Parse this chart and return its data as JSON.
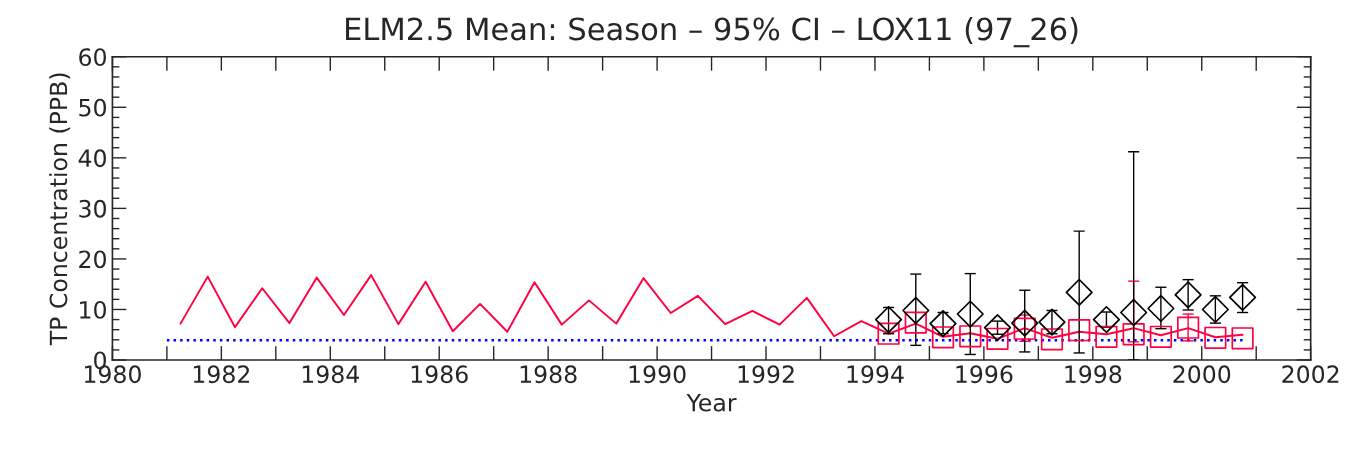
{
  "chart_data": {
    "type": "line",
    "title": "ELM2.5 Mean: Season – 95% CI – LOX11 (97_26)",
    "xlabel": "Year",
    "ylabel": "TP Concentration (PPB)",
    "xlim": [
      1980,
      2002
    ],
    "xticks": [
      1980,
      {
        "value": 1981,
        "label": null
      },
      1982,
      {
        "value": 1983,
        "label": null
      },
      1984,
      {
        "value": 1985,
        "label": null
      },
      1986,
      {
        "value": 1987,
        "label": null
      },
      1988,
      {
        "value": 1989,
        "label": null
      },
      1990,
      {
        "value": 1991,
        "label": null
      },
      1992,
      {
        "value": 1993,
        "label": null
      },
      1994,
      {
        "value": 1995,
        "label": null
      },
      1996,
      {
        "value": 1997,
        "label": null
      },
      1998,
      {
        "value": 1999,
        "label": null
      },
      2000,
      {
        "value": 2001,
        "label": null
      },
      2002
    ],
    "ylim": [
      0,
      60
    ],
    "yticks": [
      0,
      {
        "value": 2,
        "label": null
      },
      {
        "value": 4,
        "label": null
      },
      {
        "value": 6,
        "label": null
      },
      {
        "value": 8,
        "label": null
      },
      10,
      {
        "value": 12,
        "label": null
      },
      {
        "value": 14,
        "label": null
      },
      {
        "value": 16,
        "label": null
      },
      {
        "value": 18,
        "label": null
      },
      20,
      {
        "value": 22,
        "label": null
      },
      {
        "value": 24,
        "label": null
      },
      {
        "value": 26,
        "label": null
      },
      {
        "value": 28,
        "label": null
      },
      30,
      {
        "value": 32,
        "label": null
      },
      {
        "value": 34,
        "label": null
      },
      {
        "value": 36,
        "label": null
      },
      {
        "value": 38,
        "label": null
      },
      40,
      {
        "value": 42,
        "label": null
      },
      {
        "value": 44,
        "label": null
      },
      {
        "value": 46,
        "label": null
      },
      {
        "value": 48,
        "label": null
      },
      50,
      {
        "value": 52,
        "label": null
      },
      {
        "value": 54,
        "label": null
      },
      {
        "value": 56,
        "label": null
      },
      {
        "value": 58,
        "label": null
      },
      60
    ],
    "grid": false,
    "series": [
      {
        "color": "#ff0040",
        "marker": "none",
        "line_style": "solid",
        "x": [
          1981.25,
          1981.75,
          1982.25,
          1982.75,
          1983.25,
          1983.75,
          1984.25,
          1984.75,
          1985.25,
          1985.75,
          1986.25,
          1986.75,
          1987.25,
          1987.75,
          1988.25,
          1988.75,
          1989.25,
          1989.75,
          1990.25,
          1990.75,
          1991.25,
          1991.75,
          1992.25,
          1992.75,
          1993.25,
          1993.75,
          1994.25,
          1994.75,
          1995.25,
          1995.75,
          1996.25,
          1996.75,
          1997.25,
          1997.75,
          1998.25,
          1998.75,
          1999.25,
          1999.75,
          2000.25,
          2000.75
        ],
        "values": [
          7.2,
          16.5,
          6.5,
          14.2,
          7.3,
          16.3,
          8.9,
          16.8,
          7.1,
          15.5,
          5.7,
          11.1,
          5.6,
          15.4,
          7.0,
          11.8,
          7.2,
          16.2,
          9.3,
          12.7,
          7.1,
          9.7,
          7.0,
          12.3,
          4.7,
          7.7,
          5.2,
          7.2,
          4.6,
          5.3,
          4.2,
          6.3,
          4.4,
          5.6,
          5.1,
          6.3,
          4.9,
          6.3,
          4.5,
          5.0
        ]
      },
      {
        "type": "line",
        "color": "#0000ff",
        "marker": "none",
        "line_style": "dotted",
        "x": [
          1981.0,
          2000.75
        ],
        "values": [
          3.9,
          3.9
        ]
      },
      {
        "type": "scatter",
        "color": "#ff0040",
        "marker": "square",
        "x": [
          1994.25,
          1994.75,
          1995.25,
          1995.75,
          1996.25,
          1996.75,
          1997.25,
          1997.75,
          1998.25,
          1998.75,
          1999.25,
          1999.75,
          2000.25,
          2000.75
        ],
        "values": [
          5.2,
          7.4,
          4.5,
          4.7,
          4.2,
          6.2,
          4.1,
          5.9,
          4.6,
          5.1,
          4.6,
          6.4,
          4.4,
          4.3
        ],
        "errors": [
          null,
          null,
          null,
          null,
          null,
          [
            3.7,
            8.9
          ],
          null,
          null,
          null,
          [
            3.6,
            15.6
          ],
          null,
          [
            3.8,
            9.1
          ],
          null,
          null
        ]
      },
      {
        "type": "scatter",
        "color": "#000000",
        "marker": "diamond",
        "x": [
          1994.25,
          1994.75,
          1995.25,
          1995.75,
          1996.25,
          1996.75,
          1997.25,
          1997.75,
          1998.25,
          1998.75,
          1999.25,
          1999.75,
          2000.25,
          2000.75
        ],
        "values": [
          8.0,
          9.8,
          7.2,
          9.1,
          6.4,
          7.3,
          7.5,
          13.4,
          8.0,
          9.4,
          10.2,
          12.9,
          10.0,
          12.4
        ],
        "errors": [
          [
            5.2,
            10.4
          ],
          [
            2.9,
            17.0
          ],
          [
            5.2,
            9.4
          ],
          [
            1.1,
            17.1
          ],
          [
            5.1,
            7.7
          ],
          [
            1.6,
            13.8
          ],
          [
            5.2,
            9.8
          ],
          [
            1.4,
            25.5
          ],
          [
            6.5,
            9.5
          ],
          [
            0,
            41.2
          ],
          [
            6.2,
            14.4
          ],
          [
            9.9,
            15.9
          ],
          [
            7.3,
            12.7
          ],
          [
            9.4,
            15.3
          ]
        ]
      }
    ]
  }
}
